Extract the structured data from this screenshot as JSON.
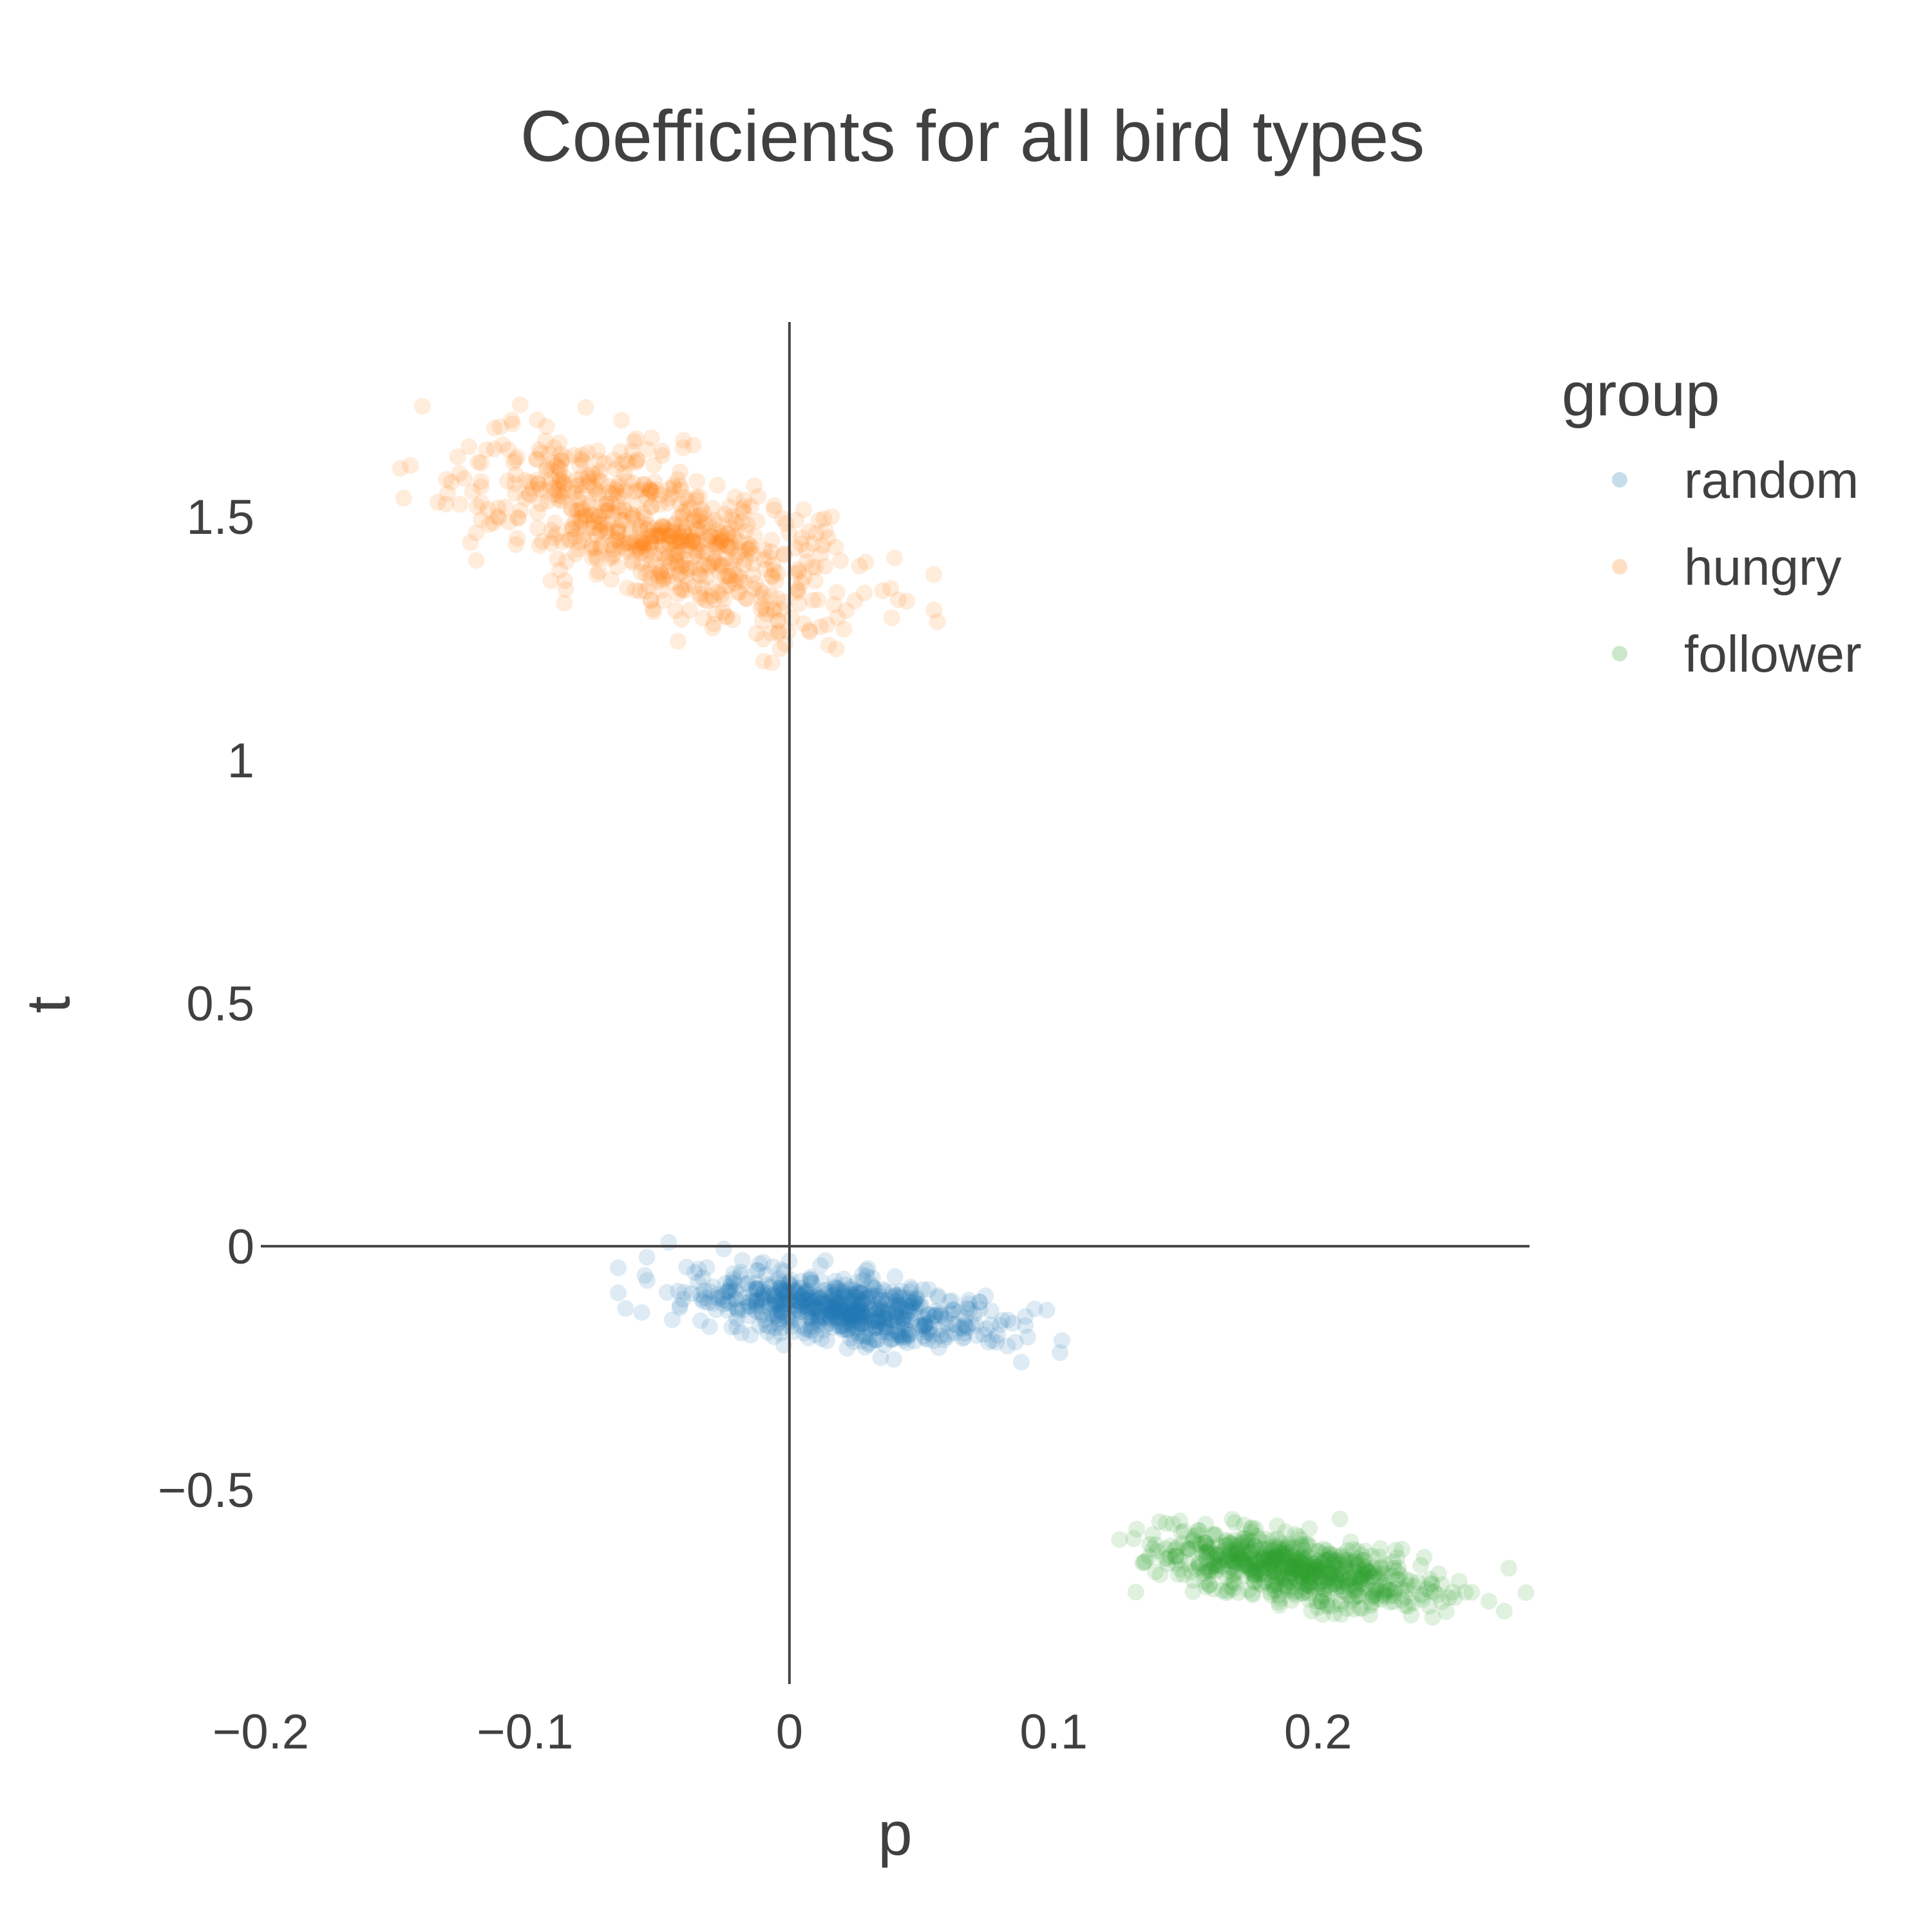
{
  "chart_data": {
    "type": "scatter",
    "title": "Coefficients for all bird types",
    "xlabel": "p",
    "ylabel": "t",
    "xlim": [
      -0.2,
      0.28
    ],
    "ylim": [
      -0.9,
      1.9
    ],
    "x_ticks": [
      -0.2,
      -0.1,
      0,
      0.1,
      0.2
    ],
    "x_tick_labels": [
      "−0.2",
      "−0.1",
      "0",
      "0.1",
      "0.2"
    ],
    "y_ticks": [
      -0.5,
      0,
      0.5,
      1,
      1.5
    ],
    "y_tick_labels": [
      "−0.5",
      "0",
      "0.5",
      "1",
      "1.5"
    ],
    "grid": false,
    "zero_lines": true,
    "legend": {
      "title": "group",
      "position": "top-right"
    },
    "marker_opacity": 0.15,
    "series": [
      {
        "name": "random",
        "color": "#1f77b4",
        "center": [
          0.02,
          -0.13
        ],
        "std": [
          0.028,
          0.035
        ],
        "correlation": -0.45,
        "count": 700,
        "x_range": [
          -0.08,
          0.12
        ],
        "y_range": [
          -0.25,
          0.01
        ]
      },
      {
        "name": "hungry",
        "color": "#ff7f0e",
        "center": [
          -0.05,
          1.47
        ],
        "std": [
          0.035,
          0.1
        ],
        "correlation": -0.62,
        "count": 700,
        "x_range": [
          -0.165,
          0.06
        ],
        "y_range": [
          1.18,
          1.73
        ]
      },
      {
        "name": "follower",
        "color": "#2ca02c",
        "center": [
          0.19,
          -0.66
        ],
        "std": [
          0.026,
          0.04
        ],
        "correlation": -0.55,
        "count": 700,
        "x_range": [
          0.122,
          0.28
        ],
        "y_range": [
          -0.78,
          -0.53
        ]
      }
    ]
  }
}
